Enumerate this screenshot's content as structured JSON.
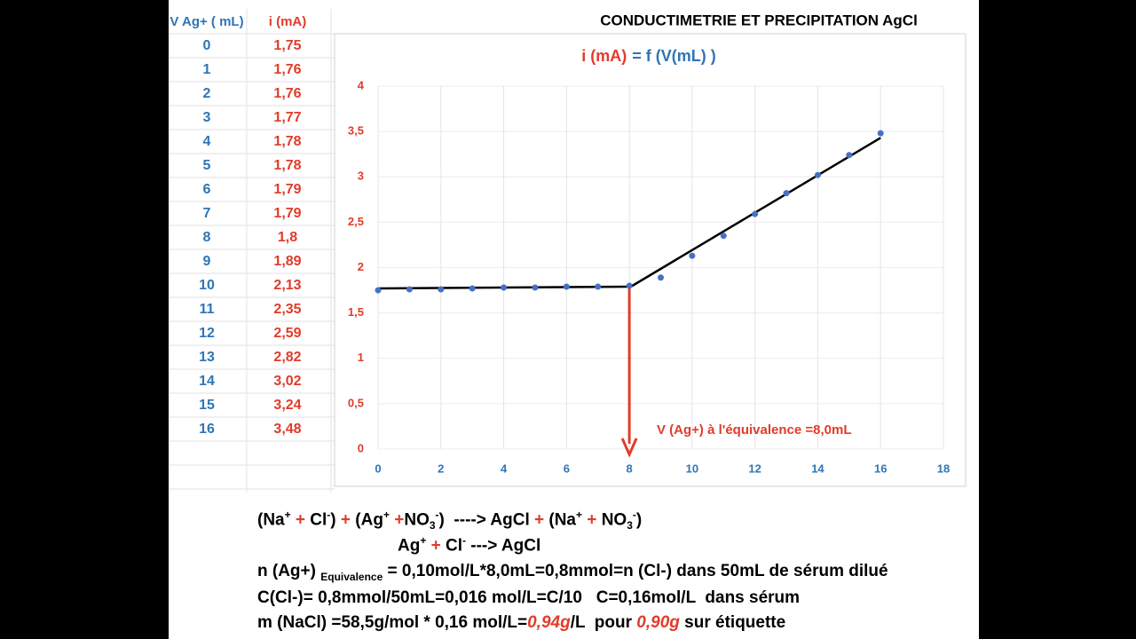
{
  "header": {
    "title": "CONDUCTIMETRIE ET PRECIPITATION AgCl"
  },
  "table": {
    "headers": [
      "V Ag+ ( mL)",
      "i (mA)"
    ]
  },
  "chart_data": {
    "type": "scatter",
    "title_parts": [
      {
        "text": "i (mA)",
        "color": "#e23b2a"
      },
      {
        "text": "= f (V(mL) )",
        "color": "#2e75b6"
      }
    ],
    "x": [
      0,
      1,
      2,
      3,
      4,
      5,
      6,
      7,
      8,
      9,
      10,
      11,
      12,
      13,
      14,
      15,
      16
    ],
    "values": [
      1.75,
      1.76,
      1.76,
      1.77,
      1.78,
      1.78,
      1.79,
      1.79,
      1.8,
      1.89,
      2.13,
      2.35,
      2.59,
      2.82,
      3.02,
      3.24,
      3.48
    ],
    "value_labels": [
      "1,75",
      "1,76",
      "1,76",
      "1,77",
      "1,78",
      "1,78",
      "1,79",
      "1,79",
      "1,8",
      "1,89",
      "2,13",
      "2,35",
      "2,59",
      "2,82",
      "3,02",
      "3,24",
      "3,48"
    ],
    "color": "#4472c4",
    "trendlines": [
      {
        "x": [
          0,
          8
        ],
        "values": [
          1.77,
          1.79
        ],
        "color": "#000000"
      },
      {
        "x": [
          8,
          16
        ],
        "values": [
          1.78,
          3.43
        ],
        "color": "#000000"
      }
    ],
    "annotation": {
      "text": "V (Ag+) à l'équivalence =8,0mL",
      "x": 8,
      "y": 1.79,
      "color": "#e23b2a"
    },
    "xlim": [
      0,
      18
    ],
    "xticks": [
      0,
      2,
      4,
      6,
      8,
      10,
      12,
      14,
      16,
      18
    ],
    "ylim": [
      0,
      4
    ],
    "yticks": [
      0,
      {
        "value": 0.5,
        "label": "0,5"
      },
      1,
      {
        "value": 1.5,
        "label": "1,5"
      },
      2,
      {
        "value": 2.5,
        "label": "2,5"
      },
      3,
      {
        "value": 3.5,
        "label": "3,5"
      },
      4
    ],
    "grid": true
  },
  "notes": {
    "lines": [
      [
        {
          "text": "(Na"
        },
        {
          "text": "+",
          "pos": "sup"
        },
        {
          "text": " + ",
          "color": "#e23b2a"
        },
        {
          "text": "Cl"
        },
        {
          "text": "-",
          "pos": "sup"
        },
        {
          "text": ") "
        },
        {
          "text": "+",
          "color": "#e23b2a"
        },
        {
          "text": " (Ag"
        },
        {
          "text": "+",
          "pos": "sup"
        },
        {
          "text": " +",
          "color": "#e23b2a"
        },
        {
          "text": "NO"
        },
        {
          "text": "3",
          "pos": "sub"
        },
        {
          "text": "-",
          "pos": "sup"
        },
        {
          "text": ")  ----> AgCl "
        },
        {
          "text": "+",
          "color": "#e23b2a"
        },
        {
          "text": " (Na"
        },
        {
          "text": "+",
          "pos": "sup"
        },
        {
          "text": " + ",
          "color": "#e23b2a"
        },
        {
          "text": "NO"
        },
        {
          "text": "3",
          "pos": "sub"
        },
        {
          "text": "-",
          "pos": "sup"
        },
        {
          "text": ")"
        }
      ],
      [
        {
          "text": "Ag"
        },
        {
          "text": "+",
          "pos": "sup"
        },
        {
          "text": " + ",
          "color": "#e23b2a"
        },
        {
          "text": "Cl"
        },
        {
          "text": "-",
          "pos": "sup"
        },
        {
          "text": " ---> AgCl"
        }
      ],
      [
        {
          "text": "n (Ag+) "
        },
        {
          "text": "Equivalence",
          "pos": "sub"
        },
        {
          "text": " = 0,10mol/L*8,0mL=0,8mmol=n (Cl-) dans 50mL de sérum dilué"
        }
      ],
      [
        {
          "text": "C(Cl-)= 0,8mmol/50mL=0,016 mol/L=C/10   C=0,16mol/L  dans sérum"
        }
      ],
      [
        {
          "text": "m (NaCl) =58,5g/mol * 0,16 mol/L="
        },
        {
          "text": "0,94g",
          "color": "#e23b2a",
          "style": "italic"
        },
        {
          "text": "/L  pour "
        },
        {
          "text": "0,90g",
          "color": "#e23b2a",
          "style": "italic"
        },
        {
          "text": " sur étiquette"
        }
      ]
    ]
  }
}
